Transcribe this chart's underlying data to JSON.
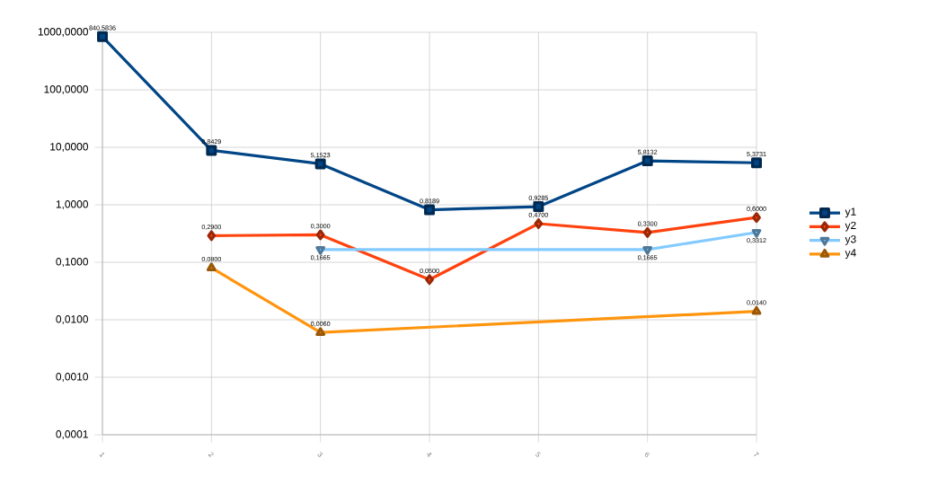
{
  "chart_data": {
    "type": "line",
    "log": "y",
    "grid": true,
    "legend": "right",
    "categories": [
      "1",
      "2",
      "3",
      "4",
      "5",
      "6",
      "7"
    ],
    "ylim": [
      0.0001,
      1000
    ],
    "yticks": [
      {
        "value": 0.0001,
        "label": "0,0001"
      },
      {
        "value": 0.001,
        "label": "0,0010"
      },
      {
        "value": 0.01,
        "label": "0,0100"
      },
      {
        "value": 0.1,
        "label": "0,1000"
      },
      {
        "value": 1,
        "label": "1,0000"
      },
      {
        "value": 10,
        "label": "10,0000"
      },
      {
        "value": 100,
        "label": "100,0000"
      },
      {
        "value": 1000,
        "label": "1000,0000"
      }
    ],
    "series": [
      {
        "name": "y1",
        "color": "#004586",
        "marker": "square",
        "values": [
          840.5836,
          8.8429,
          5.1523,
          0.8189,
          0.9285,
          5.8132,
          5.3731
        ],
        "value_labels": [
          "840,5836",
          "8,8429",
          "5,1523",
          "0,8189",
          "0,9285",
          "5,8132",
          "5,3731"
        ]
      },
      {
        "name": "y2",
        "color": "#ff420e",
        "marker": "diamond",
        "values": [
          null,
          0.29,
          0.3,
          0.05,
          0.47,
          0.33,
          0.6
        ],
        "value_labels": [
          null,
          "0,2900",
          "0,3000",
          "0,0500",
          "0,4700",
          "0,3300",
          "0,6000"
        ]
      },
      {
        "name": "y3",
        "color": "#83caff",
        "marker": "triangle",
        "values": [
          null,
          null,
          0.1665,
          null,
          null,
          0.1665,
          0.3312
        ],
        "value_labels": [
          null,
          null,
          "0,1665",
          null,
          null,
          "0,1665",
          "0,3312"
        ]
      },
      {
        "name": "y4",
        "color": "#ff950e",
        "marker": "triangle",
        "values": [
          null,
          0.08,
          0.006,
          null,
          null,
          null,
          0.014
        ],
        "value_labels": [
          null,
          "0,0800",
          "0,0060",
          null,
          null,
          null,
          "0,0140"
        ]
      }
    ]
  }
}
